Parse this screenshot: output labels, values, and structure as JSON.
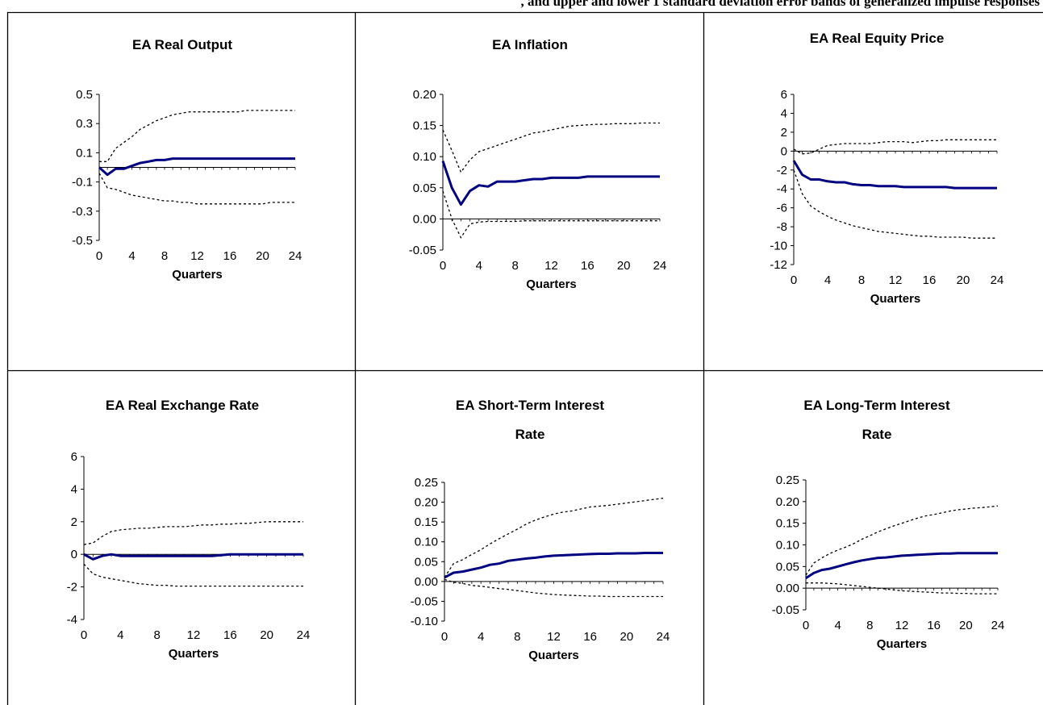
{
  "header": {
    "caption_fragment": ", and upper and lower 1 standard deviation error bands of generalized impulse responses"
  },
  "colors": {
    "response_line": "#000080",
    "band_line": "#000000",
    "axis": "#000000"
  },
  "chart_data": [
    {
      "type": "line",
      "title": [
        "EA Real Output"
      ],
      "xlabel": "Quarters",
      "ylabel": "",
      "x_ticks": [
        "0",
        "4",
        "8",
        "12",
        "16",
        "20",
        "24"
      ],
      "y_ticks": [
        0.5,
        0.3,
        0.1,
        -0.1,
        -0.3,
        -0.5
      ],
      "y_tick_labels": [
        "0.5",
        "0.3",
        "0.1",
        "-0.1",
        "-0.3",
        "-0.5"
      ],
      "xlim": [
        0,
        24
      ],
      "ylim": [
        -0.5,
        0.5
      ],
      "series": [
        {
          "values": [
            0.0,
            -0.05,
            -0.01,
            -0.01,
            0.01,
            0.03,
            0.04,
            0.05,
            0.05,
            0.06,
            0.06,
            0.06,
            0.06,
            0.06,
            0.06,
            0.06,
            0.06,
            0.06,
            0.06,
            0.06,
            0.06,
            0.06,
            0.06,
            0.06,
            0.06
          ]
        },
        {
          "values": [
            0.04,
            0.04,
            0.13,
            0.17,
            0.21,
            0.26,
            0.29,
            0.32,
            0.34,
            0.36,
            0.37,
            0.38,
            0.38,
            0.38,
            0.38,
            0.38,
            0.38,
            0.38,
            0.39,
            0.39,
            0.39,
            0.39,
            0.39,
            0.39,
            0.39
          ]
        },
        {
          "values": [
            -0.04,
            -0.14,
            -0.15,
            -0.17,
            -0.19,
            -0.2,
            -0.21,
            -0.22,
            -0.23,
            -0.23,
            -0.24,
            -0.24,
            -0.25,
            -0.25,
            -0.25,
            -0.25,
            -0.25,
            -0.25,
            -0.25,
            -0.25,
            -0.25,
            -0.24,
            -0.24,
            -0.24,
            -0.24
          ]
        }
      ]
    },
    {
      "type": "line",
      "title": [
        "EA Inflation"
      ],
      "xlabel": "Quarters",
      "ylabel": "",
      "x_ticks": [
        "0",
        "4",
        "8",
        "12",
        "16",
        "20",
        "24"
      ],
      "y_ticks": [
        0.2,
        0.15,
        0.1,
        0.05,
        0.0,
        -0.05
      ],
      "y_tick_labels": [
        "0.20",
        "0.15",
        "0.10",
        "0.05",
        "0.00",
        "-0.05"
      ],
      "xlim": [
        0,
        24
      ],
      "ylim": [
        -0.05,
        0.2
      ],
      "series": [
        {
          "values": [
            0.093,
            0.05,
            0.023,
            0.045,
            0.054,
            0.052,
            0.06,
            0.06,
            0.06,
            0.062,
            0.064,
            0.064,
            0.066,
            0.066,
            0.066,
            0.066,
            0.068,
            0.068,
            0.068,
            0.068,
            0.068,
            0.068,
            0.068,
            0.068,
            0.068
          ]
        },
        {
          "values": [
            0.143,
            0.11,
            0.075,
            0.095,
            0.108,
            0.113,
            0.118,
            0.123,
            0.128,
            0.133,
            0.138,
            0.14,
            0.143,
            0.146,
            0.149,
            0.15,
            0.151,
            0.152,
            0.152,
            0.153,
            0.153,
            0.153,
            0.154,
            0.154,
            0.154
          ]
        },
        {
          "values": [
            0.045,
            0.0,
            -0.03,
            -0.008,
            -0.005,
            -0.004,
            -0.004,
            -0.004,
            -0.004,
            -0.003,
            -0.003,
            -0.003,
            -0.003,
            -0.003,
            -0.003,
            -0.003,
            -0.003,
            -0.003,
            -0.003,
            -0.003,
            -0.003,
            -0.003,
            -0.003,
            -0.003,
            -0.003
          ]
        }
      ]
    },
    {
      "type": "line",
      "title": [
        "EA Real Equity Price"
      ],
      "xlabel": "Quarters",
      "ylabel": "",
      "x_ticks": [
        "0",
        "4",
        "8",
        "12",
        "16",
        "20",
        "24"
      ],
      "y_ticks": [
        6,
        4,
        2,
        0,
        -2,
        -4,
        -6,
        -8,
        -10,
        -12
      ],
      "y_tick_labels": [
        "6",
        "4",
        "2",
        "0",
        "-2",
        "-4",
        "-6",
        "-8",
        "-10",
        "-12"
      ],
      "xlim": [
        0,
        24
      ],
      "ylim": [
        -12,
        6
      ],
      "series": [
        {
          "values": [
            -1.0,
            -2.5,
            -3.0,
            -3.0,
            -3.2,
            -3.3,
            -3.3,
            -3.5,
            -3.6,
            -3.6,
            -3.7,
            -3.7,
            -3.7,
            -3.8,
            -3.8,
            -3.8,
            -3.8,
            -3.8,
            -3.8,
            -3.9,
            -3.9,
            -3.9,
            -3.9,
            -3.9,
            -3.9
          ]
        },
        {
          "values": [
            0.2,
            -0.3,
            -0.2,
            0.2,
            0.6,
            0.7,
            0.8,
            0.8,
            0.8,
            0.8,
            0.9,
            1.0,
            1.0,
            1.0,
            0.9,
            1.0,
            1.1,
            1.1,
            1.2,
            1.2,
            1.2,
            1.2,
            1.2,
            1.2,
            1.2
          ]
        },
        {
          "values": [
            -2.0,
            -4.5,
            -5.8,
            -6.4,
            -6.9,
            -7.3,
            -7.6,
            -7.9,
            -8.1,
            -8.3,
            -8.5,
            -8.6,
            -8.7,
            -8.8,
            -8.9,
            -9.0,
            -9.0,
            -9.1,
            -9.1,
            -9.1,
            -9.1,
            -9.2,
            -9.2,
            -9.2,
            -9.2
          ]
        }
      ]
    },
    {
      "type": "line",
      "title": [
        "EA Real Exchange Rate"
      ],
      "xlabel": "Quarters",
      "ylabel": "",
      "x_ticks": [
        "0",
        "4",
        "8",
        "12",
        "16",
        "20",
        "24"
      ],
      "y_ticks": [
        6,
        4,
        2,
        0,
        -2,
        -4
      ],
      "y_tick_labels": [
        "6",
        "4",
        "2",
        "0",
        "-2",
        "-4"
      ],
      "xlim": [
        0,
        24
      ],
      "ylim": [
        -4,
        6
      ],
      "series": [
        {
          "values": [
            0.0,
            -0.3,
            -0.1,
            0.0,
            -0.1,
            -0.1,
            -0.1,
            -0.1,
            -0.1,
            -0.1,
            -0.1,
            -0.1,
            -0.1,
            -0.1,
            -0.1,
            -0.05,
            0.0,
            0.0,
            0.0,
            0.0,
            0.0,
            0.0,
            0.0,
            0.0,
            0.0
          ]
        },
        {
          "values": [
            0.6,
            0.7,
            1.1,
            1.4,
            1.5,
            1.55,
            1.6,
            1.6,
            1.65,
            1.7,
            1.7,
            1.7,
            1.75,
            1.8,
            1.8,
            1.85,
            1.85,
            1.9,
            1.9,
            1.95,
            2.0,
            2.0,
            2.0,
            2.0,
            2.0
          ]
        },
        {
          "values": [
            -0.6,
            -1.2,
            -1.4,
            -1.5,
            -1.6,
            -1.7,
            -1.8,
            -1.85,
            -1.9,
            -1.9,
            -1.95,
            -1.95,
            -1.95,
            -1.95,
            -1.95,
            -1.95,
            -1.95,
            -1.95,
            -1.95,
            -1.95,
            -1.95,
            -1.95,
            -1.95,
            -1.95,
            -1.95
          ]
        }
      ]
    },
    {
      "type": "line",
      "title": [
        "EA Short-Term Interest",
        "Rate"
      ],
      "xlabel": "Quarters",
      "ylabel": "",
      "x_ticks": [
        "0",
        "4",
        "8",
        "12",
        "16",
        "20",
        "24"
      ],
      "y_ticks": [
        0.25,
        0.2,
        0.15,
        0.1,
        0.05,
        0.0,
        -0.05,
        -0.1
      ],
      "y_tick_labels": [
        "0.25",
        "0.20",
        "0.15",
        "0.10",
        "0.05",
        "0.00",
        "-0.05",
        "-0.10"
      ],
      "xlim": [
        0,
        24
      ],
      "ylim": [
        -0.1,
        0.25
      ],
      "series": [
        {
          "values": [
            0.01,
            0.022,
            0.025,
            0.03,
            0.035,
            0.042,
            0.045,
            0.052,
            0.055,
            0.058,
            0.06,
            0.063,
            0.065,
            0.066,
            0.067,
            0.068,
            0.069,
            0.07,
            0.07,
            0.071,
            0.071,
            0.071,
            0.072,
            0.072,
            0.072
          ]
        },
        {
          "values": [
            0.01,
            0.045,
            0.055,
            0.068,
            0.08,
            0.095,
            0.108,
            0.12,
            0.132,
            0.145,
            0.155,
            0.163,
            0.17,
            0.175,
            0.178,
            0.183,
            0.188,
            0.19,
            0.192,
            0.195,
            0.198,
            0.201,
            0.204,
            0.207,
            0.21
          ]
        },
        {
          "values": [
            0.005,
            -0.002,
            -0.005,
            -0.01,
            -0.012,
            -0.015,
            -0.018,
            -0.02,
            -0.023,
            -0.026,
            -0.029,
            -0.031,
            -0.033,
            -0.034,
            -0.035,
            -0.036,
            -0.037,
            -0.037,
            -0.038,
            -0.038,
            -0.038,
            -0.038,
            -0.038,
            -0.038,
            -0.038
          ]
        }
      ]
    },
    {
      "type": "line",
      "title": [
        "EA Long-Term Interest",
        "Rate"
      ],
      "xlabel": "Quarters",
      "ylabel": "",
      "x_ticks": [
        "0",
        "4",
        "8",
        "12",
        "16",
        "20",
        "24"
      ],
      "y_ticks": [
        0.25,
        0.2,
        0.15,
        0.1,
        0.05,
        0.0,
        -0.05
      ],
      "y_tick_labels": [
        "0.25",
        "0.20",
        "0.15",
        "0.10",
        "0.05",
        "0.00",
        "-0.05"
      ],
      "xlim": [
        0,
        24
      ],
      "ylim": [
        -0.05,
        0.25
      ],
      "series": [
        {
          "values": [
            0.023,
            0.035,
            0.042,
            0.045,
            0.05,
            0.055,
            0.06,
            0.064,
            0.067,
            0.07,
            0.071,
            0.073,
            0.075,
            0.076,
            0.077,
            0.078,
            0.079,
            0.08,
            0.08,
            0.081,
            0.081,
            0.081,
            0.081,
            0.081,
            0.081
          ]
        },
        {
          "values": [
            0.03,
            0.058,
            0.07,
            0.08,
            0.088,
            0.095,
            0.103,
            0.113,
            0.121,
            0.13,
            0.137,
            0.144,
            0.15,
            0.156,
            0.162,
            0.167,
            0.17,
            0.174,
            0.178,
            0.181,
            0.183,
            0.185,
            0.186,
            0.188,
            0.19
          ]
        },
        {
          "values": [
            0.012,
            0.012,
            0.012,
            0.011,
            0.01,
            0.008,
            0.006,
            0.004,
            0.002,
            0.0,
            -0.002,
            -0.004,
            -0.006,
            -0.007,
            -0.008,
            -0.009,
            -0.01,
            -0.011,
            -0.011,
            -0.012,
            -0.012,
            -0.013,
            -0.013,
            -0.013,
            -0.013
          ]
        }
      ]
    }
  ]
}
